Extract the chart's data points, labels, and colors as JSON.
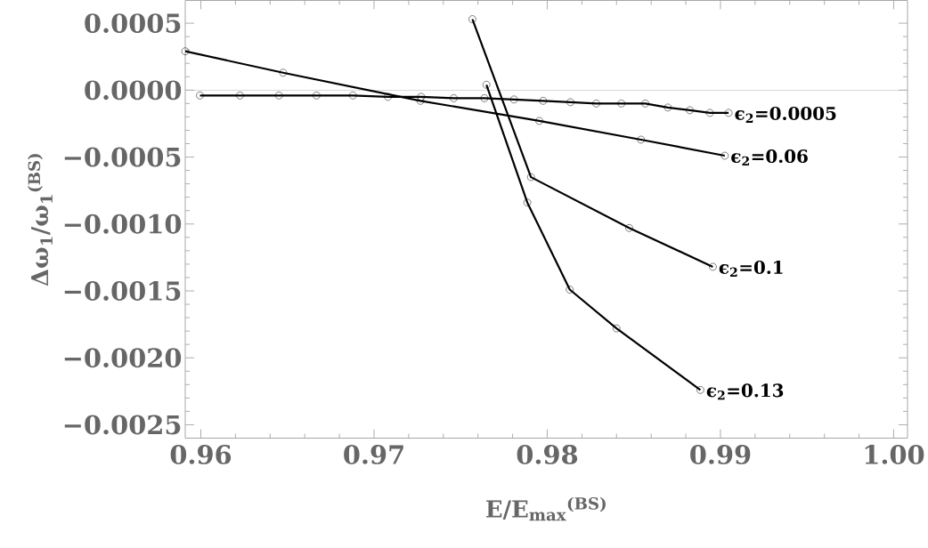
{
  "chart_data": {
    "type": "line",
    "xlabel": "E/E$_{max}$$^{(BS)}$",
    "ylabel": "Δω$_{1}$/ω$_{1}$$^{(BS)}$",
    "xlim": [
      0.9591,
      1.0008
    ],
    "ylim": [
      -0.0026,
      0.00067
    ],
    "xticks": [
      0.96,
      0.97,
      0.98,
      0.99,
      {
        "value": 1.0,
        "label": "1.00"
      }
    ],
    "yticks": [
      {
        "value": 0.0005,
        "label": "0.0005"
      },
      {
        "value": 0,
        "label": "0.0000"
      },
      {
        "value": -0.0005,
        "label": "−0.0005"
      },
      {
        "value": -0.001,
        "label": "−0.0010"
      },
      {
        "value": -0.0015,
        "label": "−0.0015"
      },
      {
        "value": -0.002,
        "label": "−0.0020"
      },
      {
        "value": -0.0025,
        "label": "−0.0025"
      }
    ],
    "grid": false,
    "marker": "circle",
    "line_style": "solid",
    "ref_lines": [
      {
        "axis": "y",
        "value": 0,
        "color": "#b0b0b0"
      }
    ],
    "series": [
      {
        "name": "ϵ$_{2}$=0.0005",
        "color": "#000000",
        "x": [
          0.95995,
          0.96226,
          0.96451,
          0.96668,
          0.96878,
          0.9708,
          0.97272,
          0.9746,
          0.97637,
          0.97808,
          0.97976,
          0.98134,
          0.98283,
          0.98428,
          0.98566,
          0.98696,
          0.98823,
          0.98939,
          0.99047
        ],
        "values": [
          -4e-05,
          -4e-05,
          -4e-05,
          -4e-05,
          -4e-05,
          -5e-05,
          -5e-05,
          -6e-05,
          -6e-05,
          -7e-05,
          -8e-05,
          -9e-05,
          -0.0001,
          -0.0001,
          -0.0001,
          -0.00013,
          -0.00015,
          -0.00017,
          -0.00017
        ]
      },
      {
        "name": "ϵ$_{2}$=0.06",
        "color": "#000000",
        "x": [
          0.9591,
          0.96475,
          0.97268,
          0.97954,
          0.98541,
          0.99025
        ],
        "values": [
          0.00029,
          0.00013,
          -8e-05,
          -0.00023,
          -0.00037,
          -0.00049
        ]
      },
      {
        "name": "ϵ$_{2}$=0.1",
        "color": "#000000",
        "x": [
          0.97568,
          0.97906,
          0.98473,
          0.98956
        ],
        "values": [
          0.00053,
          -0.00065,
          -0.00103,
          -0.00132
        ]
      },
      {
        "name": "ϵ$_{2}$=0.13",
        "color": "#000000",
        "x": [
          0.97649,
          0.97885,
          0.9813,
          0.984,
          0.98884
        ],
        "values": [
          4e-05,
          -0.00084,
          -0.00149,
          -0.00178,
          -0.00224
        ]
      }
    ]
  }
}
